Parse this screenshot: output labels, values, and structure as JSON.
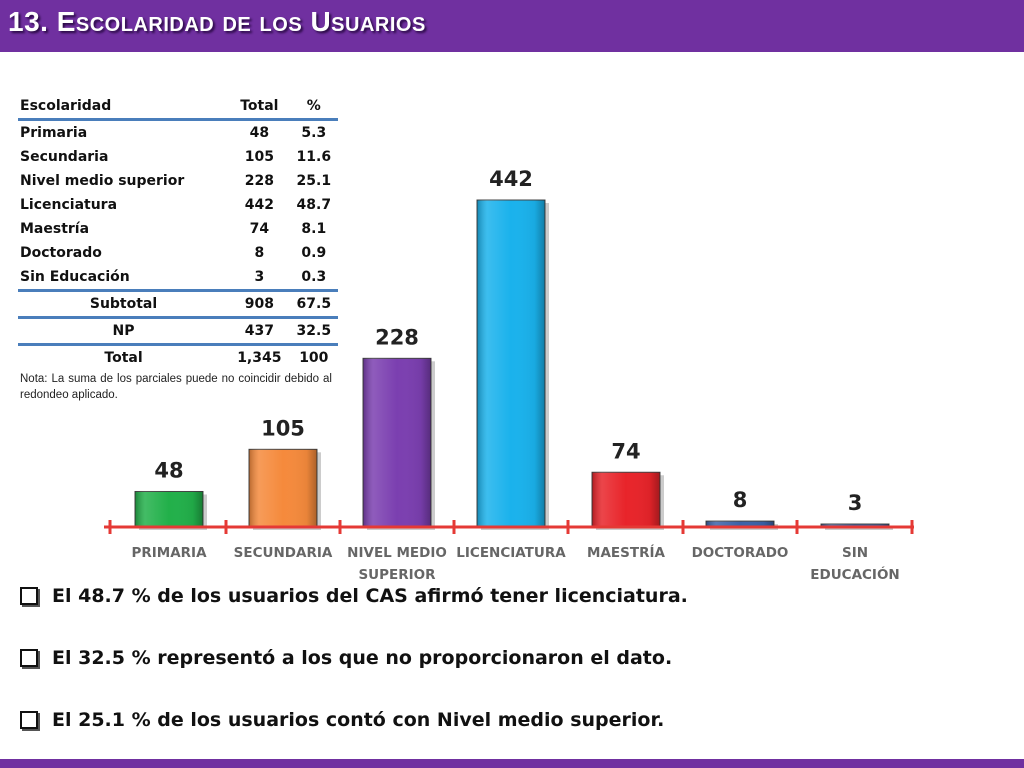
{
  "title": "13. Escolaridad de los Usuarios",
  "table": {
    "headers": [
      "Escolaridad",
      "Total",
      "%"
    ],
    "rows": [
      [
        "Primaria",
        "48",
        "5.3"
      ],
      [
        "Secundaria",
        "105",
        "11.6"
      ],
      [
        "Nivel medio superior",
        "228",
        "25.1"
      ],
      [
        "Licenciatura",
        "442",
        "48.7"
      ],
      [
        "Maestría",
        "74",
        "8.1"
      ],
      [
        "Doctorado",
        "8",
        "0.9"
      ],
      [
        "Sin Educación",
        "3",
        "0.3"
      ]
    ],
    "subtotal": [
      "Subtotal",
      "908",
      "67.5"
    ],
    "np": [
      "NP",
      "437",
      "32.5"
    ],
    "total": [
      "Total",
      "1,345",
      "100"
    ],
    "note": "Nota: La suma de los parciales puede no coincidir debido al redondeo aplicado."
  },
  "chart_data": {
    "type": "bar",
    "categories": [
      "PRIMARIA",
      "SECUNDARIA",
      "NIVEL MEDIO SUPERIOR",
      "LICENCIATURA",
      "MAESTRÍA",
      "DOCTORADO",
      "SIN EDUCACIÓN"
    ],
    "category_lines": [
      [
        "PRIMARIA"
      ],
      [
        "SECUNDARIA"
      ],
      [
        "NIVEL MEDIO",
        "SUPERIOR"
      ],
      [
        "LICENCIATURA"
      ],
      [
        "MAESTRÍA"
      ],
      [
        "DOCTORADO"
      ],
      [
        "SIN",
        "EDUCACIÓN"
      ]
    ],
    "values": [
      48,
      105,
      228,
      442,
      74,
      8,
      3
    ],
    "data_labels": [
      "48",
      "105",
      "228",
      "442",
      "74",
      "8",
      "3"
    ],
    "colors": [
      "#22b04a",
      "#f58a3c",
      "#7b3fb0",
      "#1ab2ec",
      "#e8242a",
      "#3a62a8",
      "#3a62a8"
    ],
    "axis_color": "#e53935",
    "title": "",
    "xlabel": "",
    "ylabel": "",
    "ylim": [
      0,
      442
    ],
    "grid": false,
    "legend": "none"
  },
  "bullets": [
    "El 48.7 % de los usuarios del CAS afirmó tener licenciatura.",
    "El 32.5 % representó a los que no proporcionaron el dato.",
    "El 25.1 % de los usuarios contó con Nivel medio superior."
  ]
}
